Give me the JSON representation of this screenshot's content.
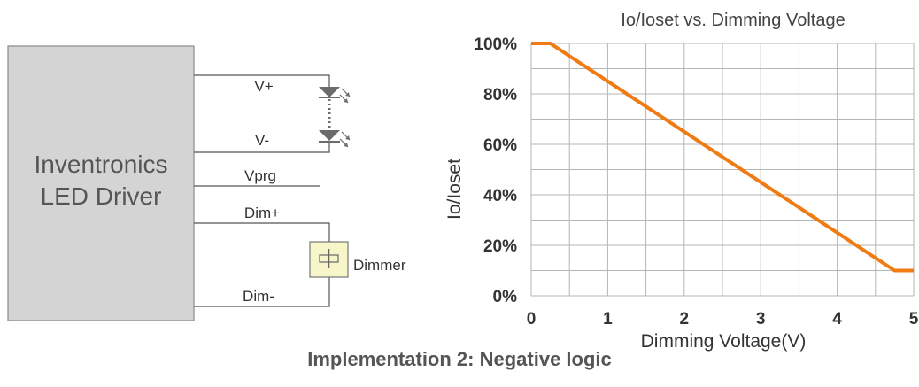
{
  "figure_caption": "Implementation 2: Negative logic",
  "wiring": {
    "driver_label_line1": "Inventronics",
    "driver_label_line2": "LED Driver",
    "wire_labels": {
      "v_plus": "V+",
      "v_minus": "V-",
      "vprg": "Vprg",
      "dim_plus": "Dim+",
      "dim_minus": "Dim-"
    },
    "dimmer_label": "Dimmer",
    "colors": {
      "driver_fill": "#d4d4d4",
      "driver_stroke": "#8a8a8a",
      "wire": "#555555",
      "led": "#6b6b6b",
      "dimmer_fill": "#f6f6c8",
      "dimmer_stroke": "#777777"
    }
  },
  "chart_data": {
    "type": "line",
    "title": "Io/Ioset vs. Dimming Voltage",
    "xlabel": "Dimming Voltage(V)",
    "ylabel": "Io/Ioset",
    "xlim": [
      0,
      5
    ],
    "ylim": [
      0,
      100
    ],
    "xticks": [
      "0",
      "1",
      "2",
      "3",
      "4",
      "5"
    ],
    "yticks": [
      "0%",
      "20%",
      "40%",
      "60%",
      "80%",
      "100%"
    ],
    "grid": true,
    "grid_step": {
      "x": 0.5,
      "y": 10
    },
    "series": [
      {
        "color": "#f07b12",
        "points": [
          [
            0,
            100
          ],
          [
            0.25,
            100
          ],
          [
            4.75,
            10
          ],
          [
            5,
            10
          ]
        ]
      }
    ],
    "colors": {
      "grid": "#b5b5b5",
      "axis_text": "#333333",
      "title_text": "#444444"
    }
  }
}
